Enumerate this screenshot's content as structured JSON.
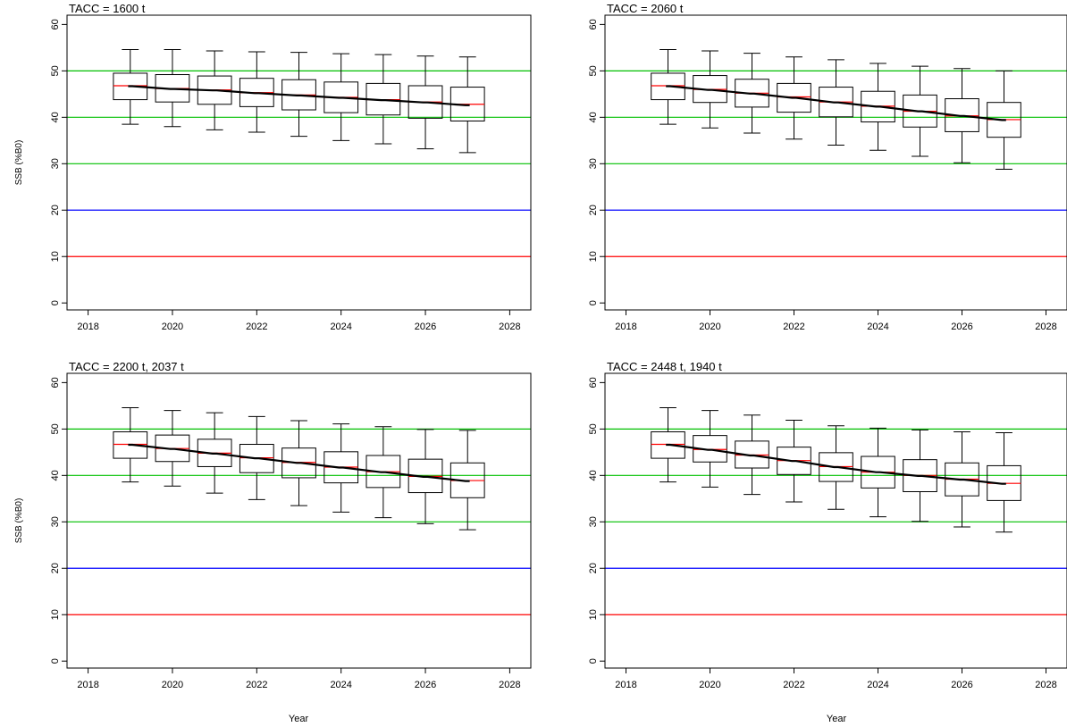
{
  "chart_data": [
    {
      "type": "box",
      "title": "TACC = 1600 t",
      "xlabel": "",
      "ylabel": "SSB (%B0)",
      "xlim": [
        2017.5,
        2028.5
      ],
      "ylim": [
        -1.5,
        62
      ],
      "xticks": [
        2018,
        2020,
        2022,
        2024,
        2026,
        2028
      ],
      "yticks": [
        0,
        10,
        20,
        30,
        40,
        50,
        60
      ],
      "grid": false,
      "reference_lines": [
        {
          "y": 50,
          "color": "#00c000"
        },
        {
          "y": 40,
          "color": "#00c000"
        },
        {
          "y": 30,
          "color": "#00c000"
        },
        {
          "y": 20,
          "color": "#0000ff"
        },
        {
          "y": 10,
          "color": "#ff0000"
        }
      ],
      "boxes": [
        {
          "x": 2019,
          "whisker_low": 38.5,
          "q1": 43.8,
          "median": 46.8,
          "q3": 49.5,
          "whisker_high": 54.6
        },
        {
          "x": 2020,
          "whisker_low": 38.0,
          "q1": 43.3,
          "median": 46.2,
          "q3": 49.2,
          "whisker_high": 54.6
        },
        {
          "x": 2021,
          "whisker_low": 37.3,
          "q1": 42.8,
          "median": 45.9,
          "q3": 48.9,
          "whisker_high": 54.3
        },
        {
          "x": 2022,
          "whisker_low": 36.8,
          "q1": 42.3,
          "median": 45.3,
          "q3": 48.4,
          "whisker_high": 54.1
        },
        {
          "x": 2023,
          "whisker_low": 35.9,
          "q1": 41.6,
          "median": 44.8,
          "q3": 48.1,
          "whisker_high": 54.0
        },
        {
          "x": 2024,
          "whisker_low": 35.0,
          "q1": 41.0,
          "median": 44.3,
          "q3": 47.6,
          "whisker_high": 53.7
        },
        {
          "x": 2025,
          "whisker_low": 34.3,
          "q1": 40.5,
          "median": 43.8,
          "q3": 47.3,
          "whisker_high": 53.5
        },
        {
          "x": 2026,
          "whisker_low": 33.2,
          "q1": 39.8,
          "median": 43.3,
          "q3": 46.8,
          "whisker_high": 53.2
        },
        {
          "x": 2027,
          "whisker_low": 32.4,
          "q1": 39.2,
          "median": 42.8,
          "q3": 46.5,
          "whisker_high": 53.0
        }
      ],
      "mean_line": {
        "color": "#000000",
        "x": [
          2019,
          2020,
          2021,
          2022,
          2023,
          2024,
          2025,
          2026,
          2027
        ],
        "y": [
          46.7,
          46.1,
          45.8,
          45.2,
          44.7,
          44.2,
          43.7,
          43.2,
          42.6
        ]
      }
    },
    {
      "type": "box",
      "title": "TACC = 2060 t",
      "xlabel": "",
      "ylabel": "",
      "xlim": [
        2017.5,
        2028.5
      ],
      "ylim": [
        -1.5,
        62
      ],
      "xticks": [
        2018,
        2020,
        2022,
        2024,
        2026,
        2028
      ],
      "yticks": [
        0,
        10,
        20,
        30,
        40,
        50,
        60
      ],
      "grid": false,
      "reference_lines": [
        {
          "y": 50,
          "color": "#00c000"
        },
        {
          "y": 40,
          "color": "#00c000"
        },
        {
          "y": 30,
          "color": "#00c000"
        },
        {
          "y": 20,
          "color": "#0000ff"
        },
        {
          "y": 10,
          "color": "#ff0000"
        }
      ],
      "boxes": [
        {
          "x": 2019,
          "whisker_low": 38.5,
          "q1": 43.8,
          "median": 46.8,
          "q3": 49.5,
          "whisker_high": 54.6
        },
        {
          "x": 2020,
          "whisker_low": 37.7,
          "q1": 43.2,
          "median": 46.0,
          "q3": 49.0,
          "whisker_high": 54.3
        },
        {
          "x": 2021,
          "whisker_low": 36.6,
          "q1": 42.2,
          "median": 45.2,
          "q3": 48.2,
          "whisker_high": 53.8
        },
        {
          "x": 2022,
          "whisker_low": 35.3,
          "q1": 41.1,
          "median": 44.4,
          "q3": 47.3,
          "whisker_high": 53.0
        },
        {
          "x": 2023,
          "whisker_low": 34.0,
          "q1": 40.1,
          "median": 43.3,
          "q3": 46.5,
          "whisker_high": 52.4
        },
        {
          "x": 2024,
          "whisker_low": 32.9,
          "q1": 39.0,
          "median": 42.4,
          "q3": 45.6,
          "whisker_high": 51.6
        },
        {
          "x": 2025,
          "whisker_low": 31.6,
          "q1": 37.9,
          "median": 41.3,
          "q3": 44.8,
          "whisker_high": 51.0
        },
        {
          "x": 2026,
          "whisker_low": 30.2,
          "q1": 36.9,
          "median": 40.3,
          "q3": 44.0,
          "whisker_high": 50.5
        },
        {
          "x": 2027,
          "whisker_low": 28.8,
          "q1": 35.7,
          "median": 39.5,
          "q3": 43.2,
          "whisker_high": 50.0
        }
      ],
      "mean_line": {
        "color": "#000000",
        "x": [
          2019,
          2020,
          2021,
          2022,
          2023,
          2024,
          2025,
          2026,
          2027
        ],
        "y": [
          46.7,
          45.9,
          45.1,
          44.2,
          43.2,
          42.3,
          41.3,
          40.3,
          39.4
        ]
      }
    },
    {
      "type": "box",
      "title": "TACC = 2200 t, 2037 t",
      "xlabel": "",
      "ylabel": "SSB (%B0)",
      "xlim": [
        2017.5,
        2028.5
      ],
      "ylim": [
        -1.5,
        62
      ],
      "xticks": [
        2018,
        2020,
        2022,
        2024,
        2026,
        2028
      ],
      "yticks": [
        0,
        10,
        20,
        30,
        40,
        50,
        60
      ],
      "grid": false,
      "reference_lines": [
        {
          "y": 50,
          "color": "#00c000"
        },
        {
          "y": 40,
          "color": "#00c000"
        },
        {
          "y": 30,
          "color": "#00c000"
        },
        {
          "y": 20,
          "color": "#0000ff"
        },
        {
          "y": 10,
          "color": "#ff0000"
        }
      ],
      "boxes": [
        {
          "x": 2019,
          "whisker_low": 38.6,
          "q1": 43.7,
          "median": 46.7,
          "q3": 49.4,
          "whisker_high": 54.6
        },
        {
          "x": 2020,
          "whisker_low": 37.7,
          "q1": 43.0,
          "median": 45.8,
          "q3": 48.7,
          "whisker_high": 54.0
        },
        {
          "x": 2021,
          "whisker_low": 36.2,
          "q1": 41.9,
          "median": 44.8,
          "q3": 47.8,
          "whisker_high": 53.5
        },
        {
          "x": 2022,
          "whisker_low": 34.8,
          "q1": 40.6,
          "median": 43.8,
          "q3": 46.7,
          "whisker_high": 52.7
        },
        {
          "x": 2023,
          "whisker_low": 33.5,
          "q1": 39.5,
          "median": 42.8,
          "q3": 45.9,
          "whisker_high": 51.8
        },
        {
          "x": 2024,
          "whisker_low": 32.1,
          "q1": 38.4,
          "median": 41.8,
          "q3": 45.1,
          "whisker_high": 51.1
        },
        {
          "x": 2025,
          "whisker_low": 30.9,
          "q1": 37.4,
          "median": 40.8,
          "q3": 44.3,
          "whisker_high": 50.5
        },
        {
          "x": 2026,
          "whisker_low": 29.6,
          "q1": 36.3,
          "median": 39.8,
          "q3": 43.5,
          "whisker_high": 49.9
        },
        {
          "x": 2027,
          "whisker_low": 28.3,
          "q1": 35.2,
          "median": 38.9,
          "q3": 42.7,
          "whisker_high": 49.7
        }
      ],
      "mean_line": {
        "color": "#000000",
        "x": [
          2019,
          2020,
          2021,
          2022,
          2023,
          2024,
          2025,
          2026,
          2027
        ],
        "y": [
          46.6,
          45.7,
          44.7,
          43.7,
          42.7,
          41.7,
          40.7,
          39.7,
          38.8
        ]
      }
    },
    {
      "type": "box",
      "title": "TACC = 2448 t, 1940 t",
      "xlabel": "",
      "ylabel": "",
      "xlim": [
        2017.5,
        2028.5
      ],
      "ylim": [
        -1.5,
        62
      ],
      "xticks": [
        2018,
        2020,
        2022,
        2024,
        2026,
        2028
      ],
      "yticks": [
        0,
        10,
        20,
        30,
        40,
        50,
        60
      ],
      "grid": false,
      "reference_lines": [
        {
          "y": 50,
          "color": "#00c000"
        },
        {
          "y": 40,
          "color": "#00c000"
        },
        {
          "y": 30,
          "color": "#00c000"
        },
        {
          "y": 20,
          "color": "#0000ff"
        },
        {
          "y": 10,
          "color": "#ff0000"
        }
      ],
      "boxes": [
        {
          "x": 2019,
          "whisker_low": 38.6,
          "q1": 43.7,
          "median": 46.7,
          "q3": 49.4,
          "whisker_high": 54.6
        },
        {
          "x": 2020,
          "whisker_low": 37.5,
          "q1": 42.9,
          "median": 45.6,
          "q3": 48.6,
          "whisker_high": 54.0
        },
        {
          "x": 2021,
          "whisker_low": 35.9,
          "q1": 41.6,
          "median": 44.4,
          "q3": 47.4,
          "whisker_high": 53.0
        },
        {
          "x": 2022,
          "whisker_low": 34.3,
          "q1": 40.2,
          "median": 43.2,
          "q3": 46.1,
          "whisker_high": 51.9
        },
        {
          "x": 2023,
          "whisker_low": 32.7,
          "q1": 38.7,
          "median": 41.9,
          "q3": 44.9,
          "whisker_high": 50.7
        },
        {
          "x": 2024,
          "whisker_low": 31.1,
          "q1": 37.3,
          "median": 40.7,
          "q3": 44.1,
          "whisker_high": 50.2
        },
        {
          "x": 2025,
          "whisker_low": 30.1,
          "q1": 36.5,
          "median": 40.0,
          "q3": 43.4,
          "whisker_high": 49.8
        },
        {
          "x": 2026,
          "whisker_low": 28.9,
          "q1": 35.6,
          "median": 39.2,
          "q3": 42.7,
          "whisker_high": 49.4
        },
        {
          "x": 2027,
          "whisker_low": 27.8,
          "q1": 34.6,
          "median": 38.3,
          "q3": 42.1,
          "whisker_high": 49.2
        }
      ],
      "mean_line": {
        "color": "#000000",
        "x": [
          2019,
          2020,
          2021,
          2022,
          2023,
          2024,
          2025,
          2026,
          2027
        ],
        "y": [
          46.6,
          45.5,
          44.3,
          43.1,
          41.8,
          40.7,
          39.9,
          39.1,
          38.2
        ]
      }
    }
  ],
  "shared": {
    "xlabel": "Year",
    "median_color": "#ff0000"
  }
}
